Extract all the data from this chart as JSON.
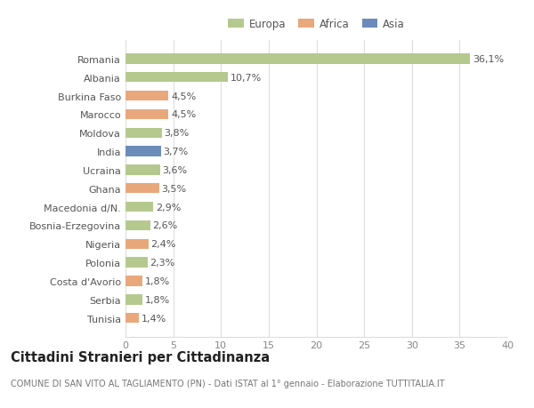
{
  "countries": [
    "Romania",
    "Albania",
    "Burkina Faso",
    "Marocco",
    "Moldova",
    "India",
    "Ucraina",
    "Ghana",
    "Macedonia d/N.",
    "Bosnia-Erzegovina",
    "Nigeria",
    "Polonia",
    "Costa d'Avorio",
    "Serbia",
    "Tunisia"
  ],
  "values": [
    36.1,
    10.7,
    4.5,
    4.5,
    3.8,
    3.7,
    3.6,
    3.5,
    2.9,
    2.6,
    2.4,
    2.3,
    1.8,
    1.8,
    1.4
  ],
  "labels": [
    "36,1%",
    "10,7%",
    "4,5%",
    "4,5%",
    "3,8%",
    "3,7%",
    "3,6%",
    "3,5%",
    "2,9%",
    "2,6%",
    "2,4%",
    "2,3%",
    "1,8%",
    "1,8%",
    "1,4%"
  ],
  "colors": [
    "#b5c98e",
    "#b5c98e",
    "#e8a87c",
    "#e8a87c",
    "#b5c98e",
    "#6b8cba",
    "#b5c98e",
    "#e8a87c",
    "#b5c98e",
    "#b5c98e",
    "#e8a87c",
    "#b5c98e",
    "#e8a87c",
    "#b5c98e",
    "#e8a87c"
  ],
  "legend_labels": [
    "Europa",
    "Africa",
    "Asia"
  ],
  "legend_colors": [
    "#b5c98e",
    "#e8a87c",
    "#6b8cba"
  ],
  "title": "Cittadini Stranieri per Cittadinanza",
  "subtitle": "COMUNE DI SAN VITO AL TAGLIAMENTO (PN) - Dati ISTAT al 1° gennaio - Elaborazione TUTTITALIA.IT",
  "xlim": [
    0,
    40
  ],
  "xticks": [
    0,
    5,
    10,
    15,
    20,
    25,
    30,
    35,
    40
  ],
  "background_color": "#ffffff",
  "grid_color": "#dddddd",
  "bar_height": 0.55,
  "label_fontsize": 8.0,
  "tick_fontsize": 8.0,
  "title_fontsize": 10.5,
  "subtitle_fontsize": 7.0,
  "ytick_color": "#555555",
  "xtick_color": "#888888",
  "label_color": "#555555",
  "title_color": "#222222",
  "subtitle_color": "#777777"
}
